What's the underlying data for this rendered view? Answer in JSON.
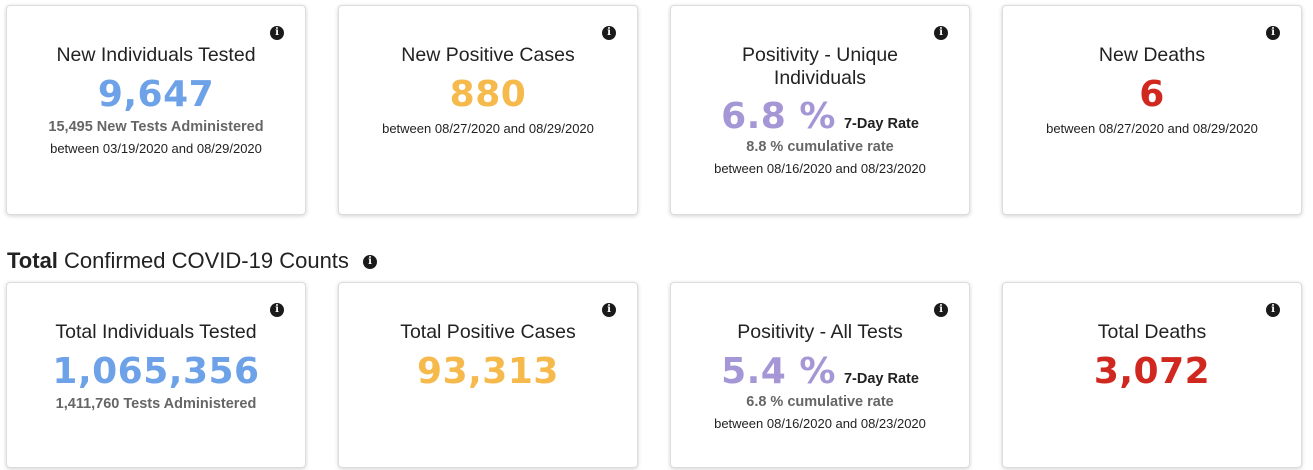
{
  "new": {
    "tested": {
      "title": "New Individuals Tested",
      "value": "9,647",
      "sub": "15,495 New Tests Administered",
      "date": "between 03/19/2020 and 08/29/2020"
    },
    "positive": {
      "title": "New Positive Cases",
      "value": "880",
      "date": "between 08/27/2020 and 08/29/2020"
    },
    "positivity": {
      "title": "Positivity - Unique Individuals",
      "value": "6.8 %",
      "rate_label": "7-Day Rate",
      "cumulative": "8.8 % cumulative rate",
      "date": "between 08/16/2020 and 08/23/2020"
    },
    "deaths": {
      "title": "New Deaths",
      "value": "6",
      "date": "between 08/27/2020 and 08/29/2020"
    }
  },
  "section": {
    "bold": "Total",
    "rest": " Confirmed COVID-19 Counts"
  },
  "total": {
    "tested": {
      "title": "Total Individuals Tested",
      "value": "1,065,356",
      "sub": "1,411,760 Tests Administered"
    },
    "positive": {
      "title": "Total Positive Cases",
      "value": "93,313"
    },
    "positivity": {
      "title": "Positivity - All Tests",
      "value": "5.4 %",
      "rate_label": "7-Day Rate",
      "cumulative": "6.8 % cumulative rate",
      "date": "between 08/16/2020 and 08/23/2020"
    },
    "deaths": {
      "title": "Total Deaths",
      "value": "3,072"
    }
  },
  "info_glyph": "i",
  "colors": {
    "blue": "#6ea2e8",
    "orange": "#f6b94c",
    "purple": "#a596d6",
    "red": "#d0271e"
  }
}
